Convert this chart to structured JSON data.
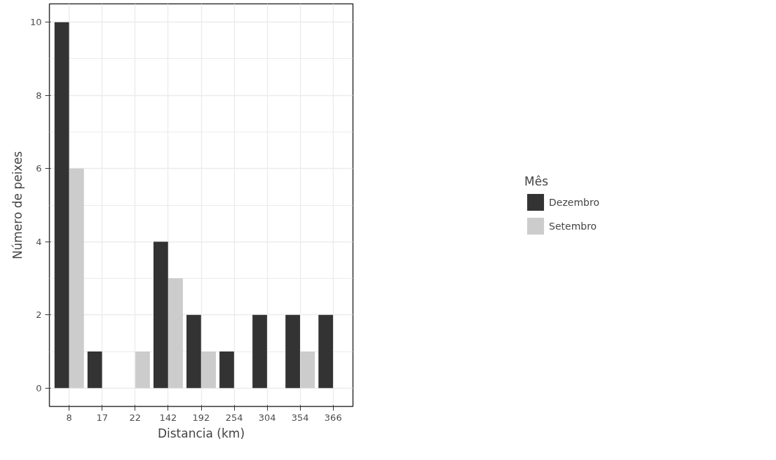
{
  "chart_data": {
    "type": "bar",
    "xlabel": "Distancia (km)",
    "ylabel": "Número de peixes",
    "legend_title": "Mês",
    "categories": [
      "8",
      "17",
      "22",
      "142",
      "192",
      "254",
      "304",
      "354",
      "366"
    ],
    "series": [
      {
        "name": "Dezembro",
        "color": "#333333",
        "values": [
          10,
          1,
          null,
          4,
          2,
          1,
          2,
          2,
          2
        ]
      },
      {
        "name": "Setembro",
        "color": "#cccccc",
        "values": [
          6,
          null,
          1,
          3,
          1,
          null,
          null,
          1,
          null
        ]
      }
    ],
    "ylim": [
      -0.5,
      10.5
    ],
    "yticks": [
      0,
      2,
      4,
      6,
      8,
      10
    ],
    "grid": true,
    "legend": "right"
  }
}
